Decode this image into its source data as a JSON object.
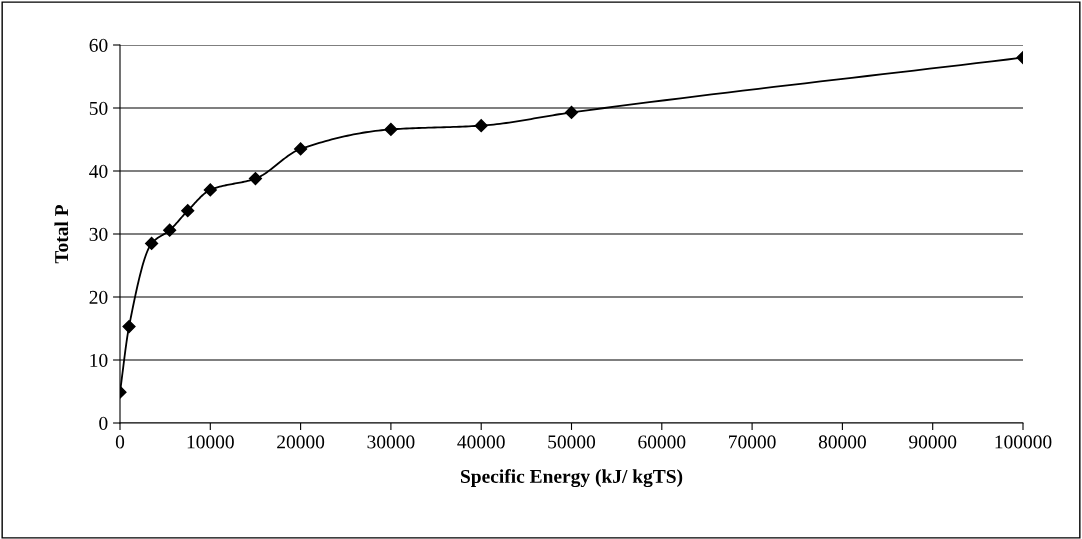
{
  "chart_data": {
    "type": "line",
    "xlabel": "Specific Energy (kJ/ kgTS)",
    "ylabel": "Total P",
    "x": [
      0,
      1000,
      3500,
      5500,
      7500,
      10000,
      15000,
      20000,
      30000,
      40000,
      50000,
      100000
    ],
    "series": [
      {
        "color": "#000000",
        "values": [
          4.9,
          15.3,
          28.5,
          30.6,
          33.7,
          37.0,
          38.8,
          43.5,
          46.6,
          47.2,
          49.3,
          58.0
        ]
      }
    ],
    "xlim": [
      0,
      100000
    ],
    "xticks": [
      0,
      10000,
      20000,
      30000,
      40000,
      50000,
      60000,
      70000,
      80000,
      90000,
      100000
    ],
    "ylim": [
      0,
      60
    ],
    "yticks": [
      0,
      10,
      20,
      30,
      40,
      50,
      60
    ],
    "grid": "y",
    "marker": "diamond",
    "line_style": "solid"
  }
}
